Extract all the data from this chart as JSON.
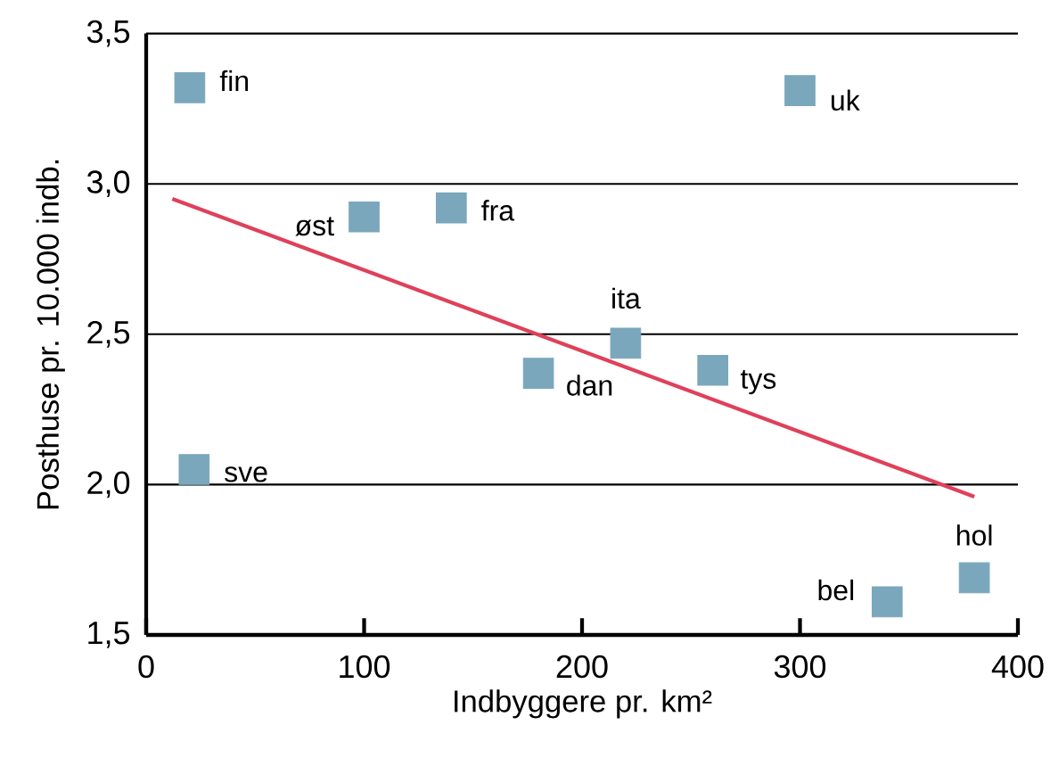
{
  "chart_data": {
    "type": "scatter",
    "xlabel": "Indbyggere pr. km²",
    "ylabel": "Posthuse pr. 10.000 indb.",
    "xlim": [
      0,
      400
    ],
    "ylim": [
      1.5,
      3.5
    ],
    "xticks": [
      0,
      100,
      200,
      300,
      400
    ],
    "yticks": [
      {
        "value": 1.5,
        "label": "1,5"
      },
      {
        "value": 2.0,
        "label": "2,0"
      },
      {
        "value": 2.5,
        "label": "2,5"
      },
      {
        "value": 3.0,
        "label": "3,0"
      },
      {
        "value": 3.5,
        "label": "3,5"
      }
    ],
    "grid": "y",
    "series": [
      {
        "marker": "square",
        "color": "#7ba7bc",
        "x": [
          20,
          300,
          100,
          140,
          220,
          180,
          260,
          22,
          340,
          380
        ],
        "values": [
          3.32,
          3.31,
          2.89,
          2.92,
          2.47,
          2.37,
          2.38,
          2.05,
          1.61,
          1.69
        ]
      },
      {
        "type": "line",
        "color": "#e0405a",
        "x": [
          12,
          380
        ],
        "values": [
          2.95,
          1.96
        ]
      }
    ],
    "annotations": [
      {
        "text": "fin",
        "x": 20,
        "y": 3.32
      },
      {
        "text": "uk",
        "x": 300,
        "y": 3.31
      },
      {
        "text": "øst",
        "x": 100,
        "y": 2.89
      },
      {
        "text": "fra",
        "x": 140,
        "y": 2.92
      },
      {
        "text": "ita",
        "x": 220,
        "y": 2.47
      },
      {
        "text": "dan",
        "x": 180,
        "y": 2.37
      },
      {
        "text": "tys",
        "x": 260,
        "y": 2.38
      },
      {
        "text": "sve",
        "x": 22,
        "y": 2.05
      },
      {
        "text": "bel",
        "x": 340,
        "y": 1.61
      },
      {
        "text": "hol",
        "x": 380,
        "y": 1.69
      }
    ]
  }
}
